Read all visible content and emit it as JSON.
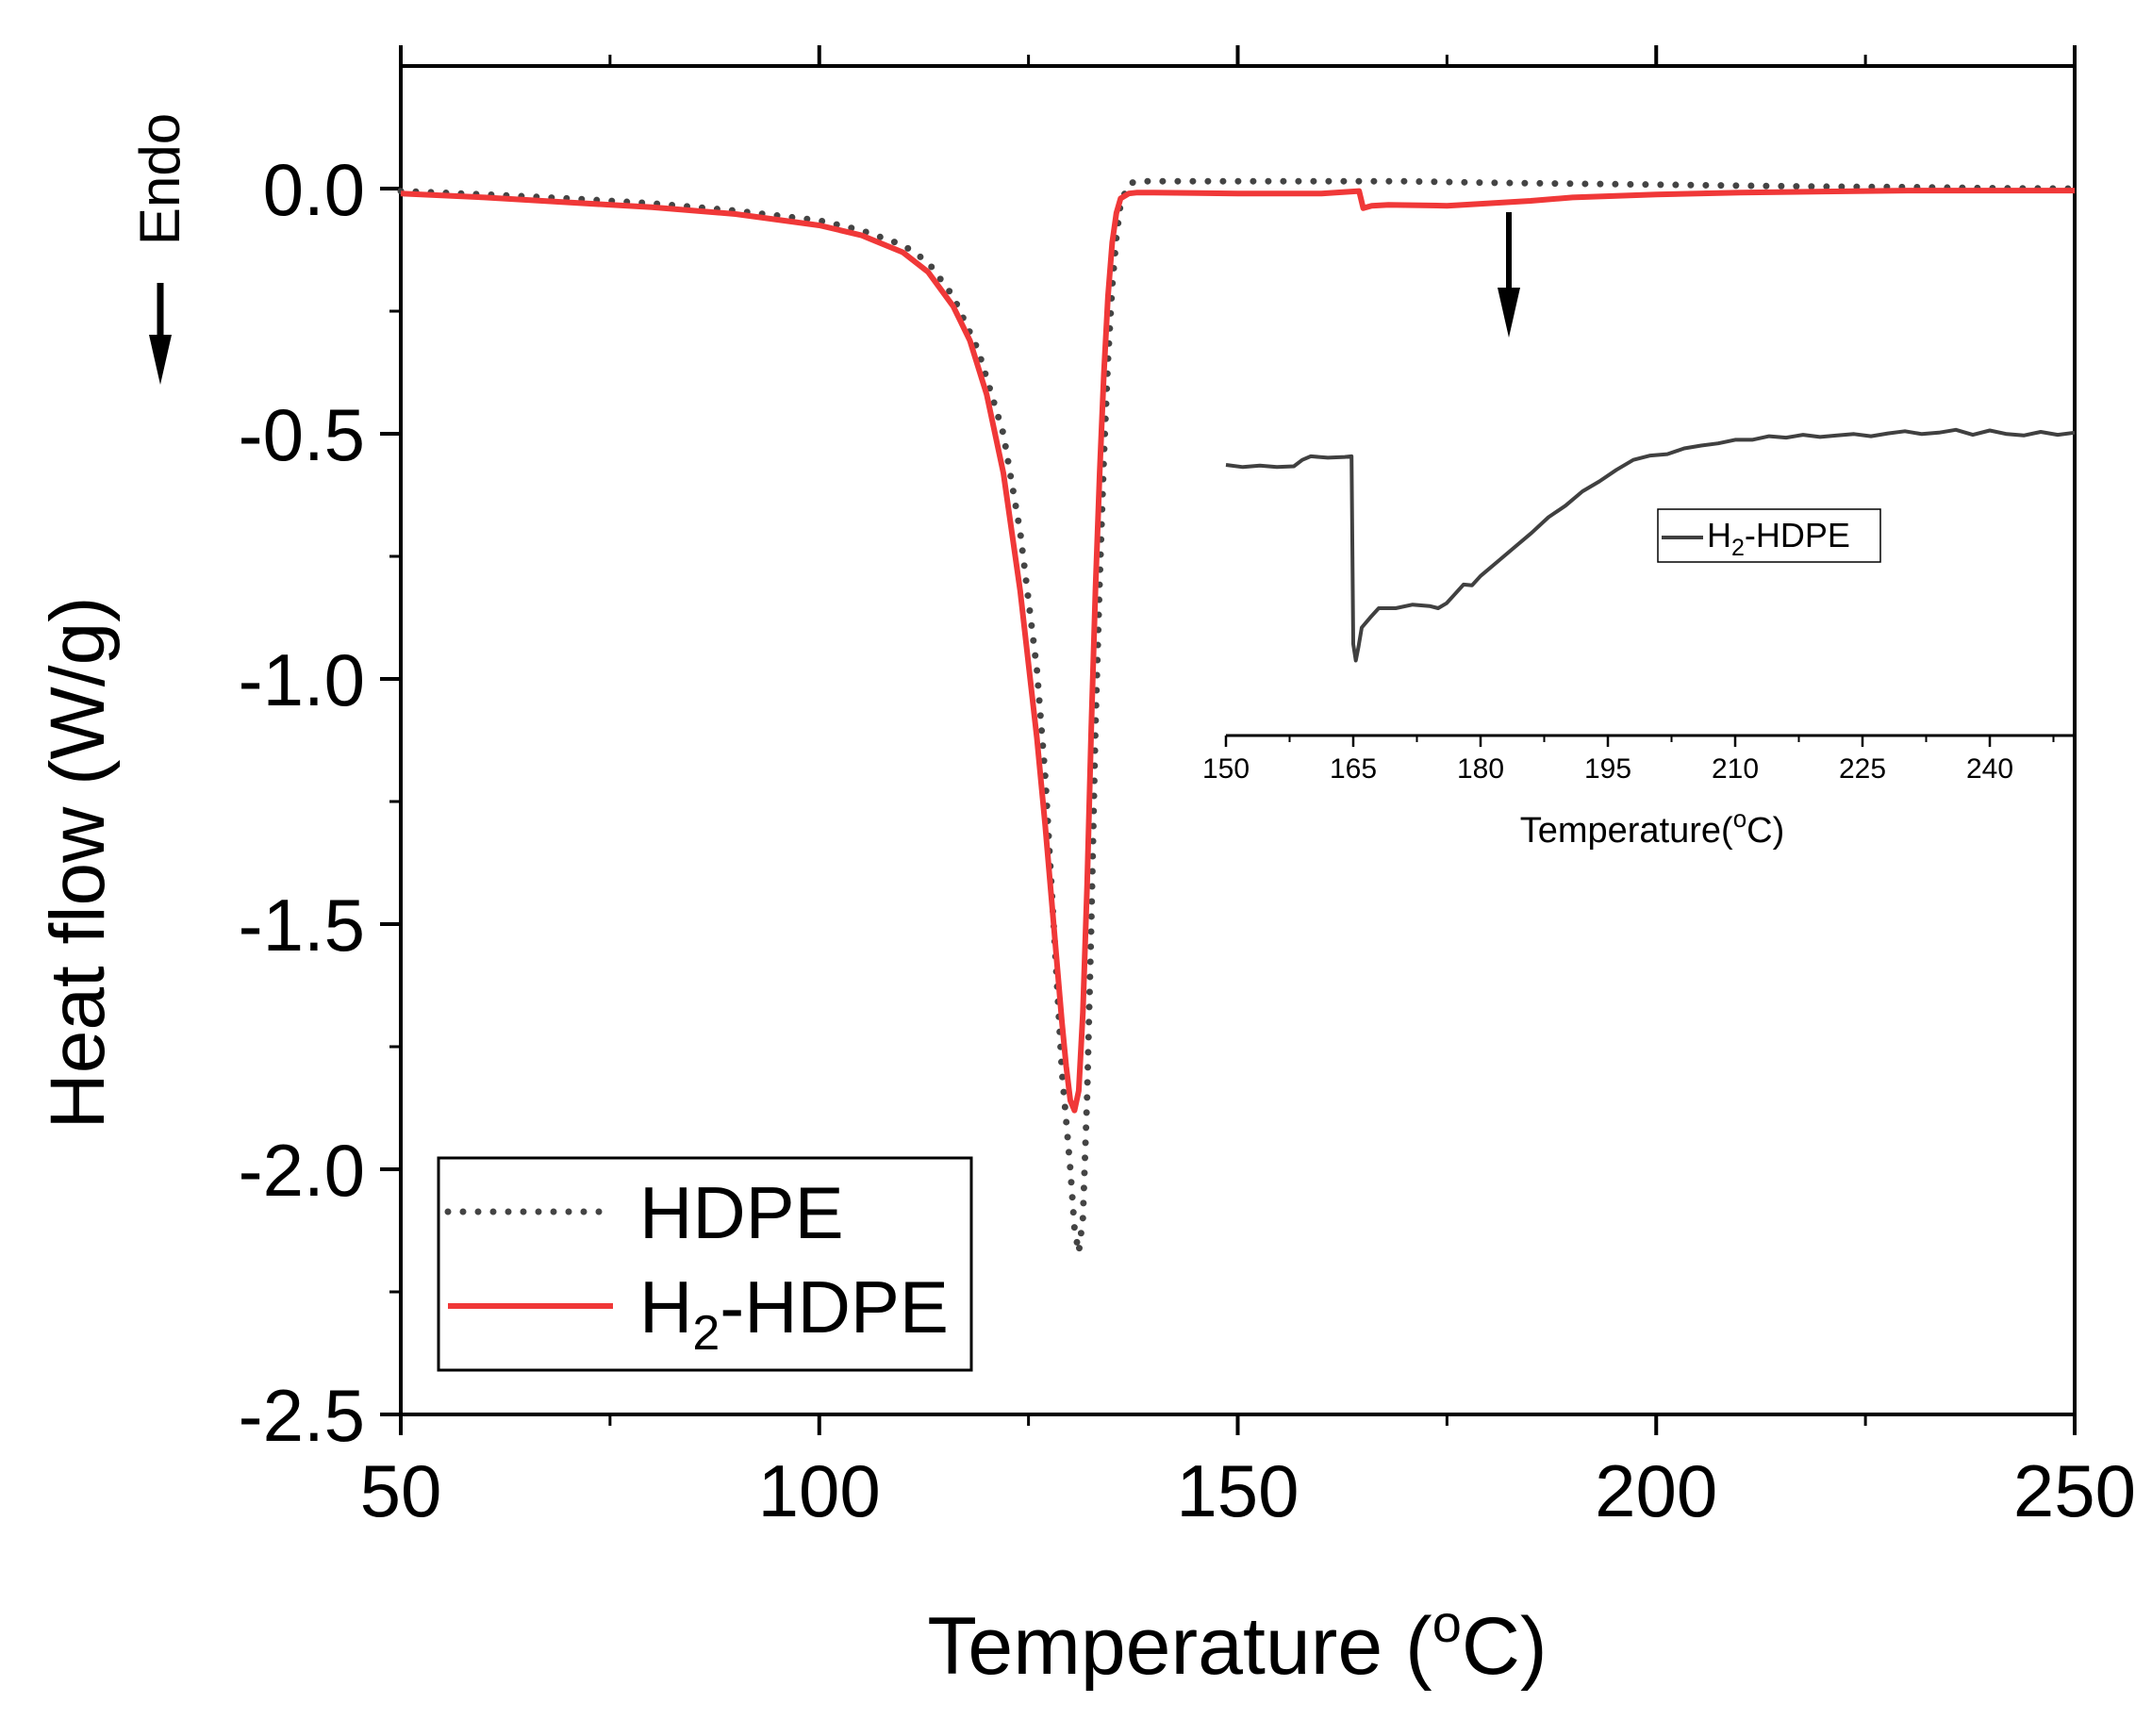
{
  "colors": {
    "background": "#ffffff",
    "axis": "#000000",
    "hdpe": "#444444",
    "h2hdpe": "#f03838",
    "inset_line": "#404040"
  },
  "chart_data": [
    {
      "id": "main",
      "type": "line",
      "title": "",
      "xlabel": "Temperature (°C)",
      "xlabel_main": "Temperature (",
      "xlabel_unit_sup": "o",
      "xlabel_unit_tail": "C)",
      "ylabel": "Heat flow (W/g)",
      "xlim": [
        50,
        250
      ],
      "ylim": [
        -2.5,
        0.25
      ],
      "xticks": [
        50,
        100,
        150,
        200,
        250
      ],
      "xtick_labels": [
        "50",
        "100",
        "150",
        "200",
        "250"
      ],
      "yticks": [
        0.0,
        -0.5,
        -1.0,
        -1.5,
        -2.0,
        -2.5
      ],
      "ytick_labels": [
        "0.0",
        "-0.5",
        "-1.0",
        "-1.5",
        "-2.0",
        "-2.5"
      ],
      "grid": false,
      "legend_position": "bottom-left",
      "annotation_endo": "Endo",
      "series": [
        {
          "name": "HDPE",
          "legend_main": "HDPE",
          "legend_sub": "",
          "legend_tail": "",
          "style": "dotted",
          "color": "#444444",
          "x": [
            50,
            60,
            70,
            80,
            90,
            100,
            105,
            110,
            113,
            116,
            119,
            122,
            124,
            126,
            127,
            128,
            129,
            130,
            130.5,
            131,
            131.5,
            132,
            132.5,
            133,
            133.5,
            134,
            134.5,
            135,
            135.5,
            136,
            137,
            138,
            140,
            145,
            150,
            160,
            170,
            180,
            190,
            200,
            210,
            220,
            230,
            240,
            250
          ],
          "y": [
            -0.005,
            -0.012,
            -0.02,
            -0.03,
            -0.045,
            -0.065,
            -0.085,
            -0.115,
            -0.15,
            -0.22,
            -0.33,
            -0.5,
            -0.7,
            -0.98,
            -1.2,
            -1.5,
            -1.8,
            -2.0,
            -2.12,
            -2.17,
            -2.1,
            -1.85,
            -1.5,
            -1.1,
            -0.8,
            -0.55,
            -0.35,
            -0.2,
            -0.1,
            -0.03,
            0.01,
            0.015,
            0.015,
            0.015,
            0.015,
            0.015,
            0.015,
            0.012,
            0.01,
            0.008,
            0.006,
            0.004,
            0.003,
            0.001,
            0.0
          ]
        },
        {
          "name": "H2-HDPE",
          "legend_main": "H",
          "legend_sub": "2",
          "legend_tail": "-HDPE",
          "style": "solid",
          "color": "#f03838",
          "x": [
            50,
            60,
            70,
            80,
            90,
            100,
            105,
            110,
            113,
            116,
            118,
            120,
            122,
            124,
            126,
            127,
            128,
            129,
            129.5,
            130,
            130.5,
            131,
            131.5,
            132,
            132.5,
            133,
            133.5,
            134,
            134.5,
            135,
            135.5,
            136,
            137,
            138,
            140,
            150,
            160,
            164.5,
            165,
            166,
            168,
            175,
            180,
            185,
            190,
            200,
            210,
            220,
            230,
            240,
            250
          ],
          "y": [
            -0.01,
            -0.018,
            -0.028,
            -0.038,
            -0.052,
            -0.075,
            -0.095,
            -0.13,
            -0.17,
            -0.24,
            -0.31,
            -0.42,
            -0.58,
            -0.82,
            -1.12,
            -1.3,
            -1.5,
            -1.7,
            -1.79,
            -1.86,
            -1.88,
            -1.84,
            -1.68,
            -1.42,
            -1.1,
            -0.82,
            -0.58,
            -0.38,
            -0.22,
            -0.11,
            -0.05,
            -0.02,
            -0.01,
            -0.008,
            -0.008,
            -0.01,
            -0.01,
            -0.005,
            -0.04,
            -0.035,
            -0.033,
            -0.035,
            -0.03,
            -0.025,
            -0.018,
            -0.012,
            -0.008,
            -0.006,
            -0.004,
            -0.004,
            -0.004
          ]
        }
      ]
    },
    {
      "id": "inset",
      "type": "line",
      "title": "",
      "xlabel": "Temperature(°C)",
      "xlabel_main": "Temperature(",
      "xlabel_unit_sup": "o",
      "xlabel_unit_tail": "C)",
      "ylabel": "",
      "xlim": [
        150,
        250
      ],
      "ylim": [
        -0.045,
        0.005
      ],
      "xticks": [
        150,
        165,
        180,
        195,
        210,
        225,
        240
      ],
      "xtick_labels": [
        "150",
        "165",
        "180",
        "195",
        "210",
        "225",
        "240"
      ],
      "grid": false,
      "legend_position": "right",
      "series": [
        {
          "name": "H2-HDPE",
          "legend_main": "H",
          "legend_sub": "2",
          "legend_tail": "-HDPE",
          "style": "solid",
          "color": "#404040",
          "x": [
            150,
            152,
            154,
            156,
            158,
            159,
            160,
            162,
            164,
            164.8,
            165.0,
            165.3,
            165.6,
            166,
            167,
            168,
            170,
            172,
            174,
            175,
            176,
            177,
            178,
            179,
            180,
            182,
            184,
            186,
            188,
            190,
            192,
            194,
            196,
            198,
            200,
            202,
            204,
            206,
            208,
            210,
            212,
            214,
            216,
            218,
            220,
            222,
            224,
            226,
            228,
            230,
            232,
            234,
            236,
            238,
            240,
            242,
            244,
            246,
            248,
            250
          ],
          "y": [
            -0.0125,
            -0.0128,
            -0.0126,
            -0.0128,
            -0.0127,
            -0.0118,
            -0.0113,
            -0.0115,
            -0.0114,
            -0.0113,
            -0.0375,
            -0.0398,
            -0.038,
            -0.0352,
            -0.0338,
            -0.0325,
            -0.0325,
            -0.032,
            -0.0322,
            -0.0325,
            -0.0318,
            -0.0305,
            -0.0292,
            -0.0293,
            -0.028,
            -0.026,
            -0.024,
            -0.022,
            -0.0198,
            -0.0182,
            -0.0162,
            -0.0148,
            -0.0132,
            -0.0118,
            -0.0112,
            -0.011,
            -0.0102,
            -0.0098,
            -0.0095,
            -0.009,
            -0.009,
            -0.0085,
            -0.0087,
            -0.0083,
            -0.0086,
            -0.0084,
            -0.0082,
            -0.0085,
            -0.0081,
            -0.0078,
            -0.0082,
            -0.008,
            -0.0076,
            -0.0083,
            -0.0077,
            -0.0082,
            -0.0084,
            -0.0079,
            -0.0083,
            -0.008
          ]
        }
      ]
    }
  ]
}
